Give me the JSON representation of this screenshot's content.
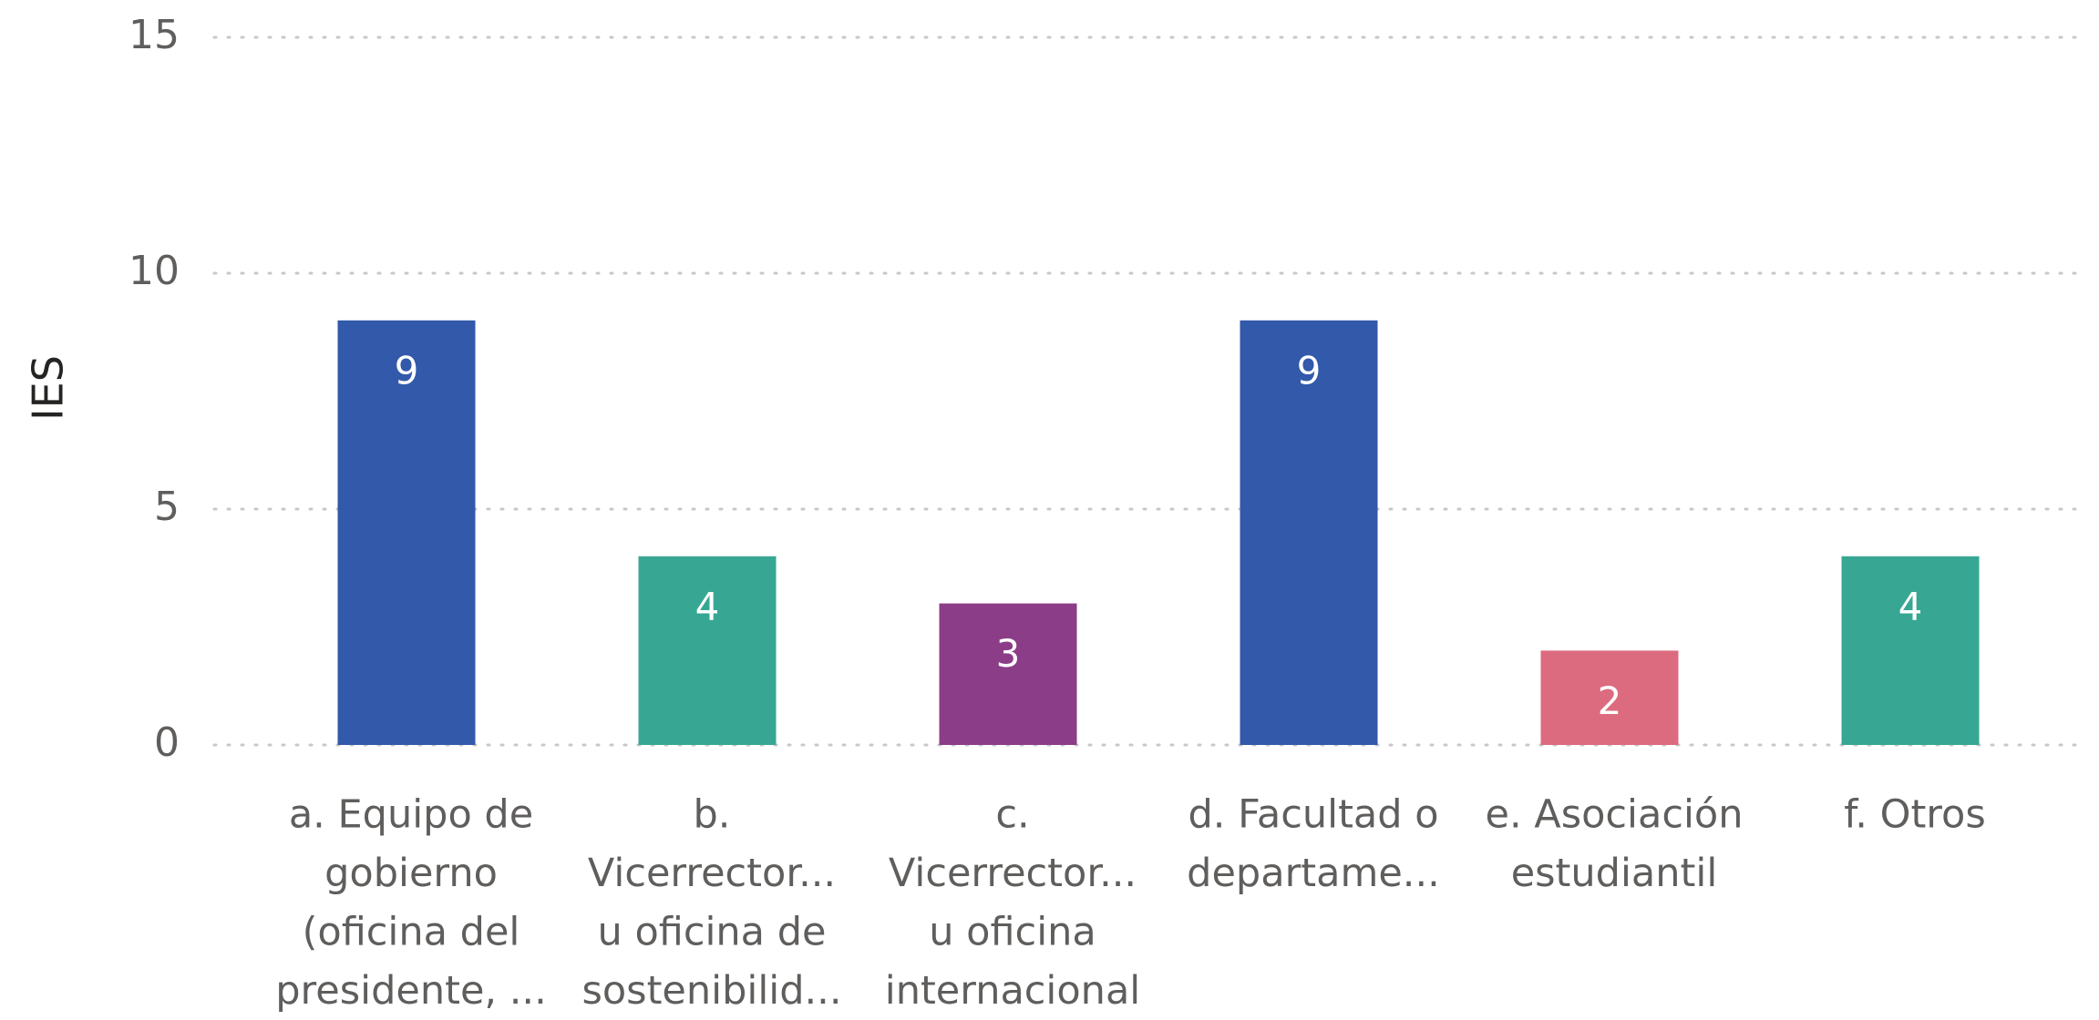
{
  "chart_data": {
    "type": "bar",
    "y_label": "IES",
    "categories": [
      [
        "a. Equipo de",
        "gobierno",
        "(oficina del",
        "presidente, ..."
      ],
      [
        "b.",
        "Vicerrector...",
        "u oficina de",
        "sostenibilid..."
      ],
      [
        "c.",
        "Vicerrector...",
        "u oficina",
        "internacional"
      ],
      [
        "d. Facultad o",
        "departame..."
      ],
      [
        "e. Asociación",
        "estudiantil"
      ],
      [
        "f. Otros"
      ]
    ],
    "values": [
      9,
      4,
      3,
      9,
      2,
      4
    ],
    "colors": [
      "#3259aa",
      "#37a794",
      "#8b3d88",
      "#3259aa",
      "#dd6b7f",
      "#37a794"
    ],
    "ylim": [
      0,
      15
    ],
    "yticks": [
      0,
      5,
      10,
      15
    ],
    "grid": true
  }
}
